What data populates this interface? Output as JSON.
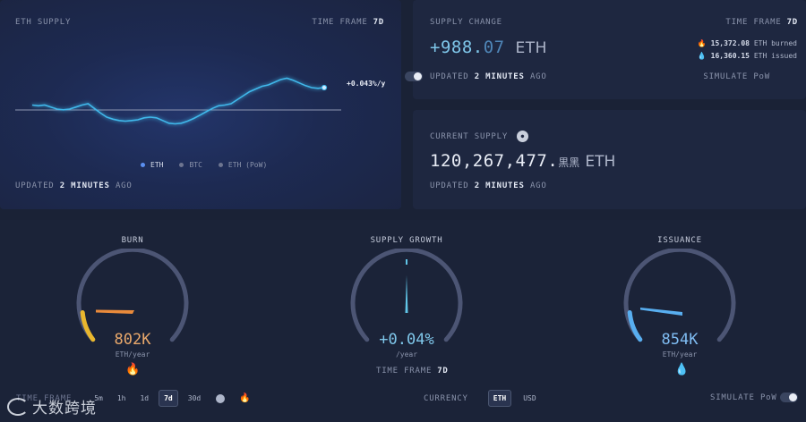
{
  "colors": {
    "eth_line": "#3fb7ea",
    "burn": "#e9a23b",
    "issuance": "#58aef0",
    "growth": "#61c6e8",
    "accent_positive": "#7fc7ea"
  },
  "eth_supply": {
    "title": "ETH SUPPLY",
    "timeframe_label": "TIME FRAME",
    "timeframe_value": "7d",
    "rate_label": "+0.043%/y",
    "legend": [
      {
        "label": "ETH",
        "active": true,
        "color": "#5b8ff0"
      },
      {
        "label": "BTC",
        "active": false,
        "color": "#6d7590"
      },
      {
        "label": "ETH (PoW)",
        "active": false,
        "color": "#6d7590"
      }
    ],
    "updated_prefix": "UPDATED",
    "updated_value": "2 MINUTES",
    "updated_suffix": "AGO",
    "series": [
      0.5,
      0.49,
      0.5,
      0.47,
      0.44,
      0.43,
      0.44,
      0.47,
      0.5,
      0.52,
      0.45,
      0.38,
      0.32,
      0.29,
      0.27,
      0.26,
      0.27,
      0.28,
      0.31,
      0.32,
      0.31,
      0.27,
      0.23,
      0.22,
      0.23,
      0.26,
      0.3,
      0.35,
      0.4,
      0.45,
      0.49,
      0.5,
      0.52,
      0.58,
      0.64,
      0.7,
      0.74,
      0.78,
      0.8,
      0.84,
      0.88,
      0.9,
      0.87,
      0.83,
      0.79,
      0.76,
      0.75,
      0.76
    ]
  },
  "supply_change": {
    "title": "SUPPLY CHANGE",
    "timeframe_label": "TIME FRAME",
    "timeframe_value": "7d",
    "value_prefix": "+988.",
    "value_decimals": "07",
    "unit": "ETH",
    "burned_value": "15,372.08",
    "burned_label": "ETH burned",
    "issued_value": "16,360.15",
    "issued_label": "ETH issued",
    "updated_prefix": "UPDATED",
    "updated_value": "2 MINUTES",
    "updated_suffix": "AGO",
    "simulate_label": "SIMULATE PoW"
  },
  "current_supply": {
    "title": "CURRENT SUPPLY",
    "value": "120,267,477.",
    "value_tail": "黒黑",
    "unit": "ETH",
    "updated_prefix": "UPDATED",
    "updated_value": "2 MINUTES",
    "updated_suffix": "AGO"
  },
  "gauges": {
    "burn": {
      "title": "BURN",
      "value": "802K",
      "unit": "ETH/year",
      "level": 0.1
    },
    "growth": {
      "title": "SUPPLY GROWTH",
      "value": "+0.04%",
      "unit": "/year",
      "level": 0.5
    },
    "issuance": {
      "title": "ISSUANCE",
      "value": "854K",
      "unit": "ETH/year",
      "level": 0.1
    }
  },
  "bottom_bar": {
    "timeframe_label": "TIME FRAME",
    "timeframe_value": "7d",
    "timeframe_options": [
      "5m",
      "1h",
      "1d",
      "7d",
      "30d"
    ],
    "selected_option": "7d",
    "currency_label": "CURRENCY",
    "currency_options": [
      "ETH",
      "USD"
    ],
    "selected_currency": "ETH",
    "simulate_label": "SIMULATE PoW"
  },
  "watermark": {
    "text": "大数跨境"
  }
}
